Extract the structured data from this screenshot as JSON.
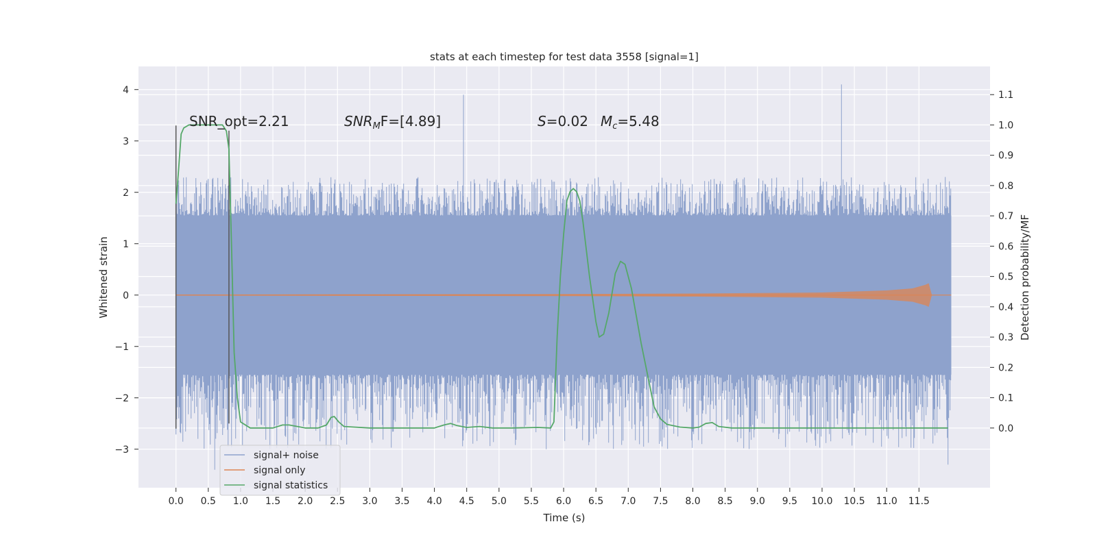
{
  "chart_data": {
    "type": "line",
    "title": "stats at each timestep for test data 3558 [signal=1]",
    "xlabel": "Time (s)",
    "ylabel": "Whitened strain",
    "ylabel_right": "Detection probability/MF",
    "xlim": [
      -0.58,
      12.6
    ],
    "ylim": [
      -3.75,
      4.45
    ],
    "ylim_right": [
      -0.197,
      1.193
    ],
    "x_ticks": [
      "0.0",
      "0.5",
      "1.0",
      "1.5",
      "2.0",
      "2.5",
      "3.0",
      "3.5",
      "4.0",
      "4.5",
      "5.0",
      "5.5",
      "6.0",
      "6.5",
      "7.0",
      "7.5",
      "8.0",
      "8.5",
      "9.0",
      "9.5",
      "10.0",
      "10.5",
      "11.0",
      "11.5"
    ],
    "y_ticks": [
      "4",
      "3",
      "2",
      "1",
      "0",
      "−1",
      "−2",
      "−3"
    ],
    "y_ticks_right": [
      "1.1",
      "1.0",
      "0.9",
      "0.8",
      "0.7",
      "0.6",
      "0.5",
      "0.4",
      "0.3",
      "0.2",
      "0.1",
      "0.0"
    ],
    "grid": true,
    "legend_position": "bottom-left",
    "annotations": [
      {
        "text": "SNR_opt=2.21"
      },
      {
        "text": "SNR",
        "sub": "M",
        "tail": "F=[4.89]"
      },
      {
        "text": "S",
        "tail": "=0.02"
      },
      {
        "text": "M",
        "sub": "c",
        "tail": "=5.48"
      }
    ],
    "series": [
      {
        "name": "signal+ noise",
        "color": "#8ea2cc",
        "axis": "left",
        "band": [
          -1.55,
          1.55
        ],
        "spike_range": [
          -3.4,
          4.1
        ],
        "x_range": [
          0.0,
          12.0
        ],
        "notable_spikes": [
          {
            "x": 4.45,
            "y": 3.9
          },
          {
            "x": 10.3,
            "y": 4.1
          },
          {
            "x": 0.6,
            "y": -3.4
          },
          {
            "x": 11.95,
            "y": -3.3
          }
        ]
      },
      {
        "name": "signal only",
        "color": "#dd8452",
        "axis": "left",
        "x_range": [
          0.0,
          12.0
        ],
        "envelope_x": [
          0.0,
          3.0,
          6.0,
          7.0,
          8.0,
          9.0,
          10.0,
          10.5,
          11.0,
          11.4,
          11.6,
          11.65,
          11.7
        ],
        "envelope_amp": [
          0.01,
          0.015,
          0.02,
          0.025,
          0.03,
          0.04,
          0.05,
          0.07,
          0.09,
          0.13,
          0.2,
          0.23,
          0.0
        ]
      },
      {
        "name": "signal statistics",
        "color": "#55a868",
        "axis": "right",
        "x": [
          0.0,
          0.04,
          0.08,
          0.12,
          0.2,
          0.3,
          0.5,
          0.72,
          0.78,
          0.82,
          0.86,
          0.9,
          0.95,
          1.0,
          1.15,
          1.5,
          1.65,
          1.75,
          2.0,
          2.2,
          2.33,
          2.4,
          2.45,
          2.52,
          2.6,
          3.0,
          3.5,
          4.0,
          4.15,
          4.25,
          4.35,
          4.5,
          4.7,
          4.9,
          5.2,
          5.6,
          5.8,
          5.85,
          5.9,
          5.95,
          6.0,
          6.05,
          6.1,
          6.15,
          6.2,
          6.25,
          6.3,
          6.4,
          6.5,
          6.55,
          6.62,
          6.7,
          6.8,
          6.88,
          6.95,
          7.05,
          7.2,
          7.4,
          7.5,
          7.6,
          7.8,
          8.0,
          8.1,
          8.2,
          8.3,
          8.4,
          8.6,
          9.0,
          9.5,
          10.0,
          10.5,
          11.0,
          11.5,
          11.95
        ],
        "y": [
          0.74,
          0.85,
          0.97,
          0.99,
          1.0,
          1.0,
          1.0,
          1.0,
          0.98,
          0.92,
          0.6,
          0.25,
          0.1,
          0.02,
          0.0,
          0.0,
          0.01,
          0.01,
          0.0,
          0.0,
          0.01,
          0.035,
          0.038,
          0.02,
          0.005,
          0.0,
          0.0,
          0.0,
          0.01,
          0.015,
          0.008,
          0.002,
          0.005,
          0.0,
          0.0,
          0.002,
          0.0,
          0.02,
          0.3,
          0.5,
          0.64,
          0.75,
          0.78,
          0.79,
          0.78,
          0.75,
          0.68,
          0.5,
          0.35,
          0.3,
          0.31,
          0.38,
          0.51,
          0.55,
          0.54,
          0.46,
          0.28,
          0.07,
          0.03,
          0.012,
          0.003,
          0.0,
          0.003,
          0.015,
          0.018,
          0.005,
          0.0,
          0.0,
          0.0,
          0.0,
          0.0,
          0.0,
          0.0,
          0.0
        ]
      }
    ],
    "markers": {
      "color": "#555555",
      "vertical_lines": [
        {
          "x": 0.0,
          "y0": -2.6,
          "y1": 3.3
        },
        {
          "x": 0.82,
          "y0": -2.5,
          "y1": 3.2
        }
      ]
    }
  }
}
